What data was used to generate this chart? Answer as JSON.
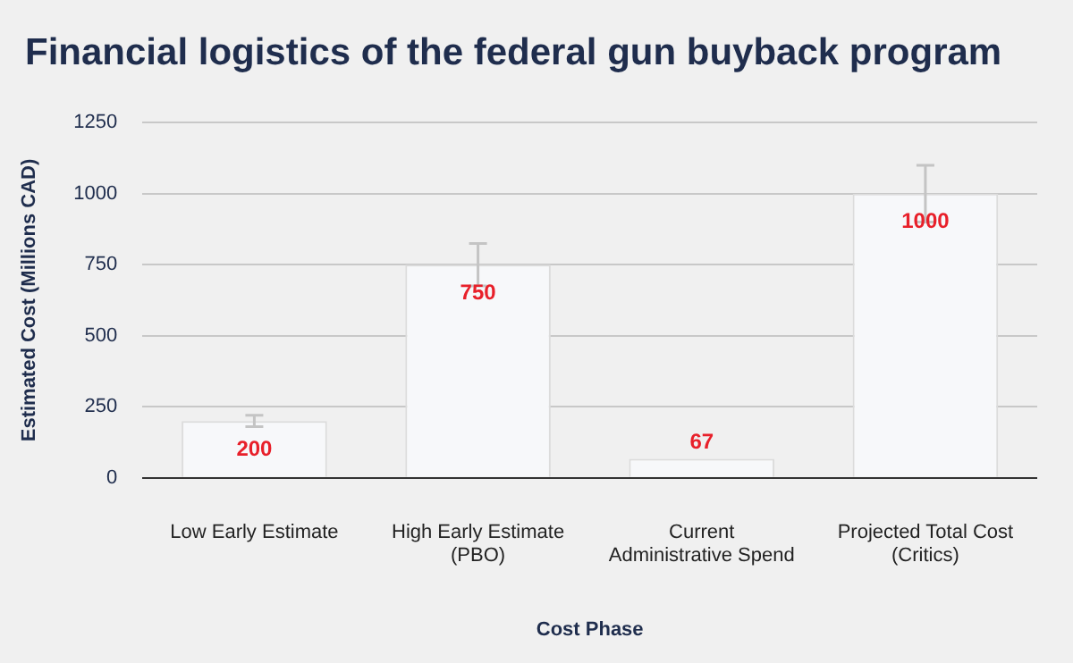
{
  "chart_data": {
    "type": "bar",
    "title": "Financial logistics of the federal gun buyback program",
    "xlabel": "Cost Phase",
    "ylabel": "Estimated Cost (Millions CAD)",
    "categories": [
      "Low Early Estimate",
      "High Early Estimate (PBO)",
      "Current Administrative Spend",
      "Projected Total Cost (Critics)"
    ],
    "values": [
      200,
      750,
      67,
      1000
    ],
    "errors": [
      [
        180,
        220
      ],
      [
        675,
        825
      ],
      null,
      [
        900,
        1100
      ]
    ],
    "color": "#f7f8fa",
    "ylim": [
      0,
      1250
    ],
    "yticks": [
      0,
      250,
      500,
      750,
      1000,
      1250
    ],
    "grid": "y",
    "data_labels": true,
    "legend": false
  }
}
